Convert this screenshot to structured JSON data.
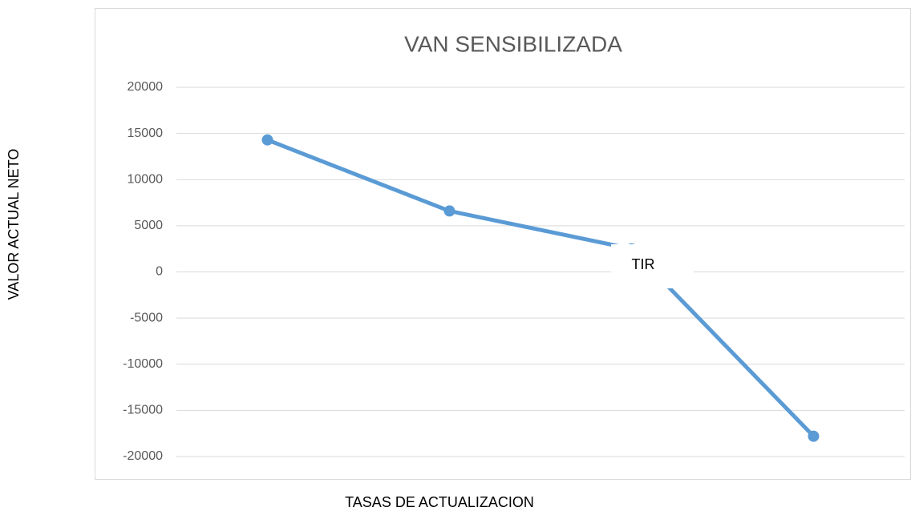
{
  "chart_data": {
    "type": "line",
    "title": "VAN SENSIBILIZADA",
    "x_label": "TASAS DE ACTUALIZACION",
    "y_label": "VALOR ACTUAL NETO",
    "annotation": "TIR",
    "categories": [
      null,
      null,
      null,
      null
    ],
    "series": [
      {
        "name": "VAN",
        "color": "#5b9bd5",
        "values": [
          14300,
          6600,
          2500,
          -17800
        ]
      }
    ],
    "ylim": [
      -20000,
      20000
    ],
    "yticks": [
      -20000,
      -15000,
      -10000,
      -5000,
      0,
      5000,
      10000,
      15000,
      20000
    ],
    "grid": true,
    "legend": false
  }
}
